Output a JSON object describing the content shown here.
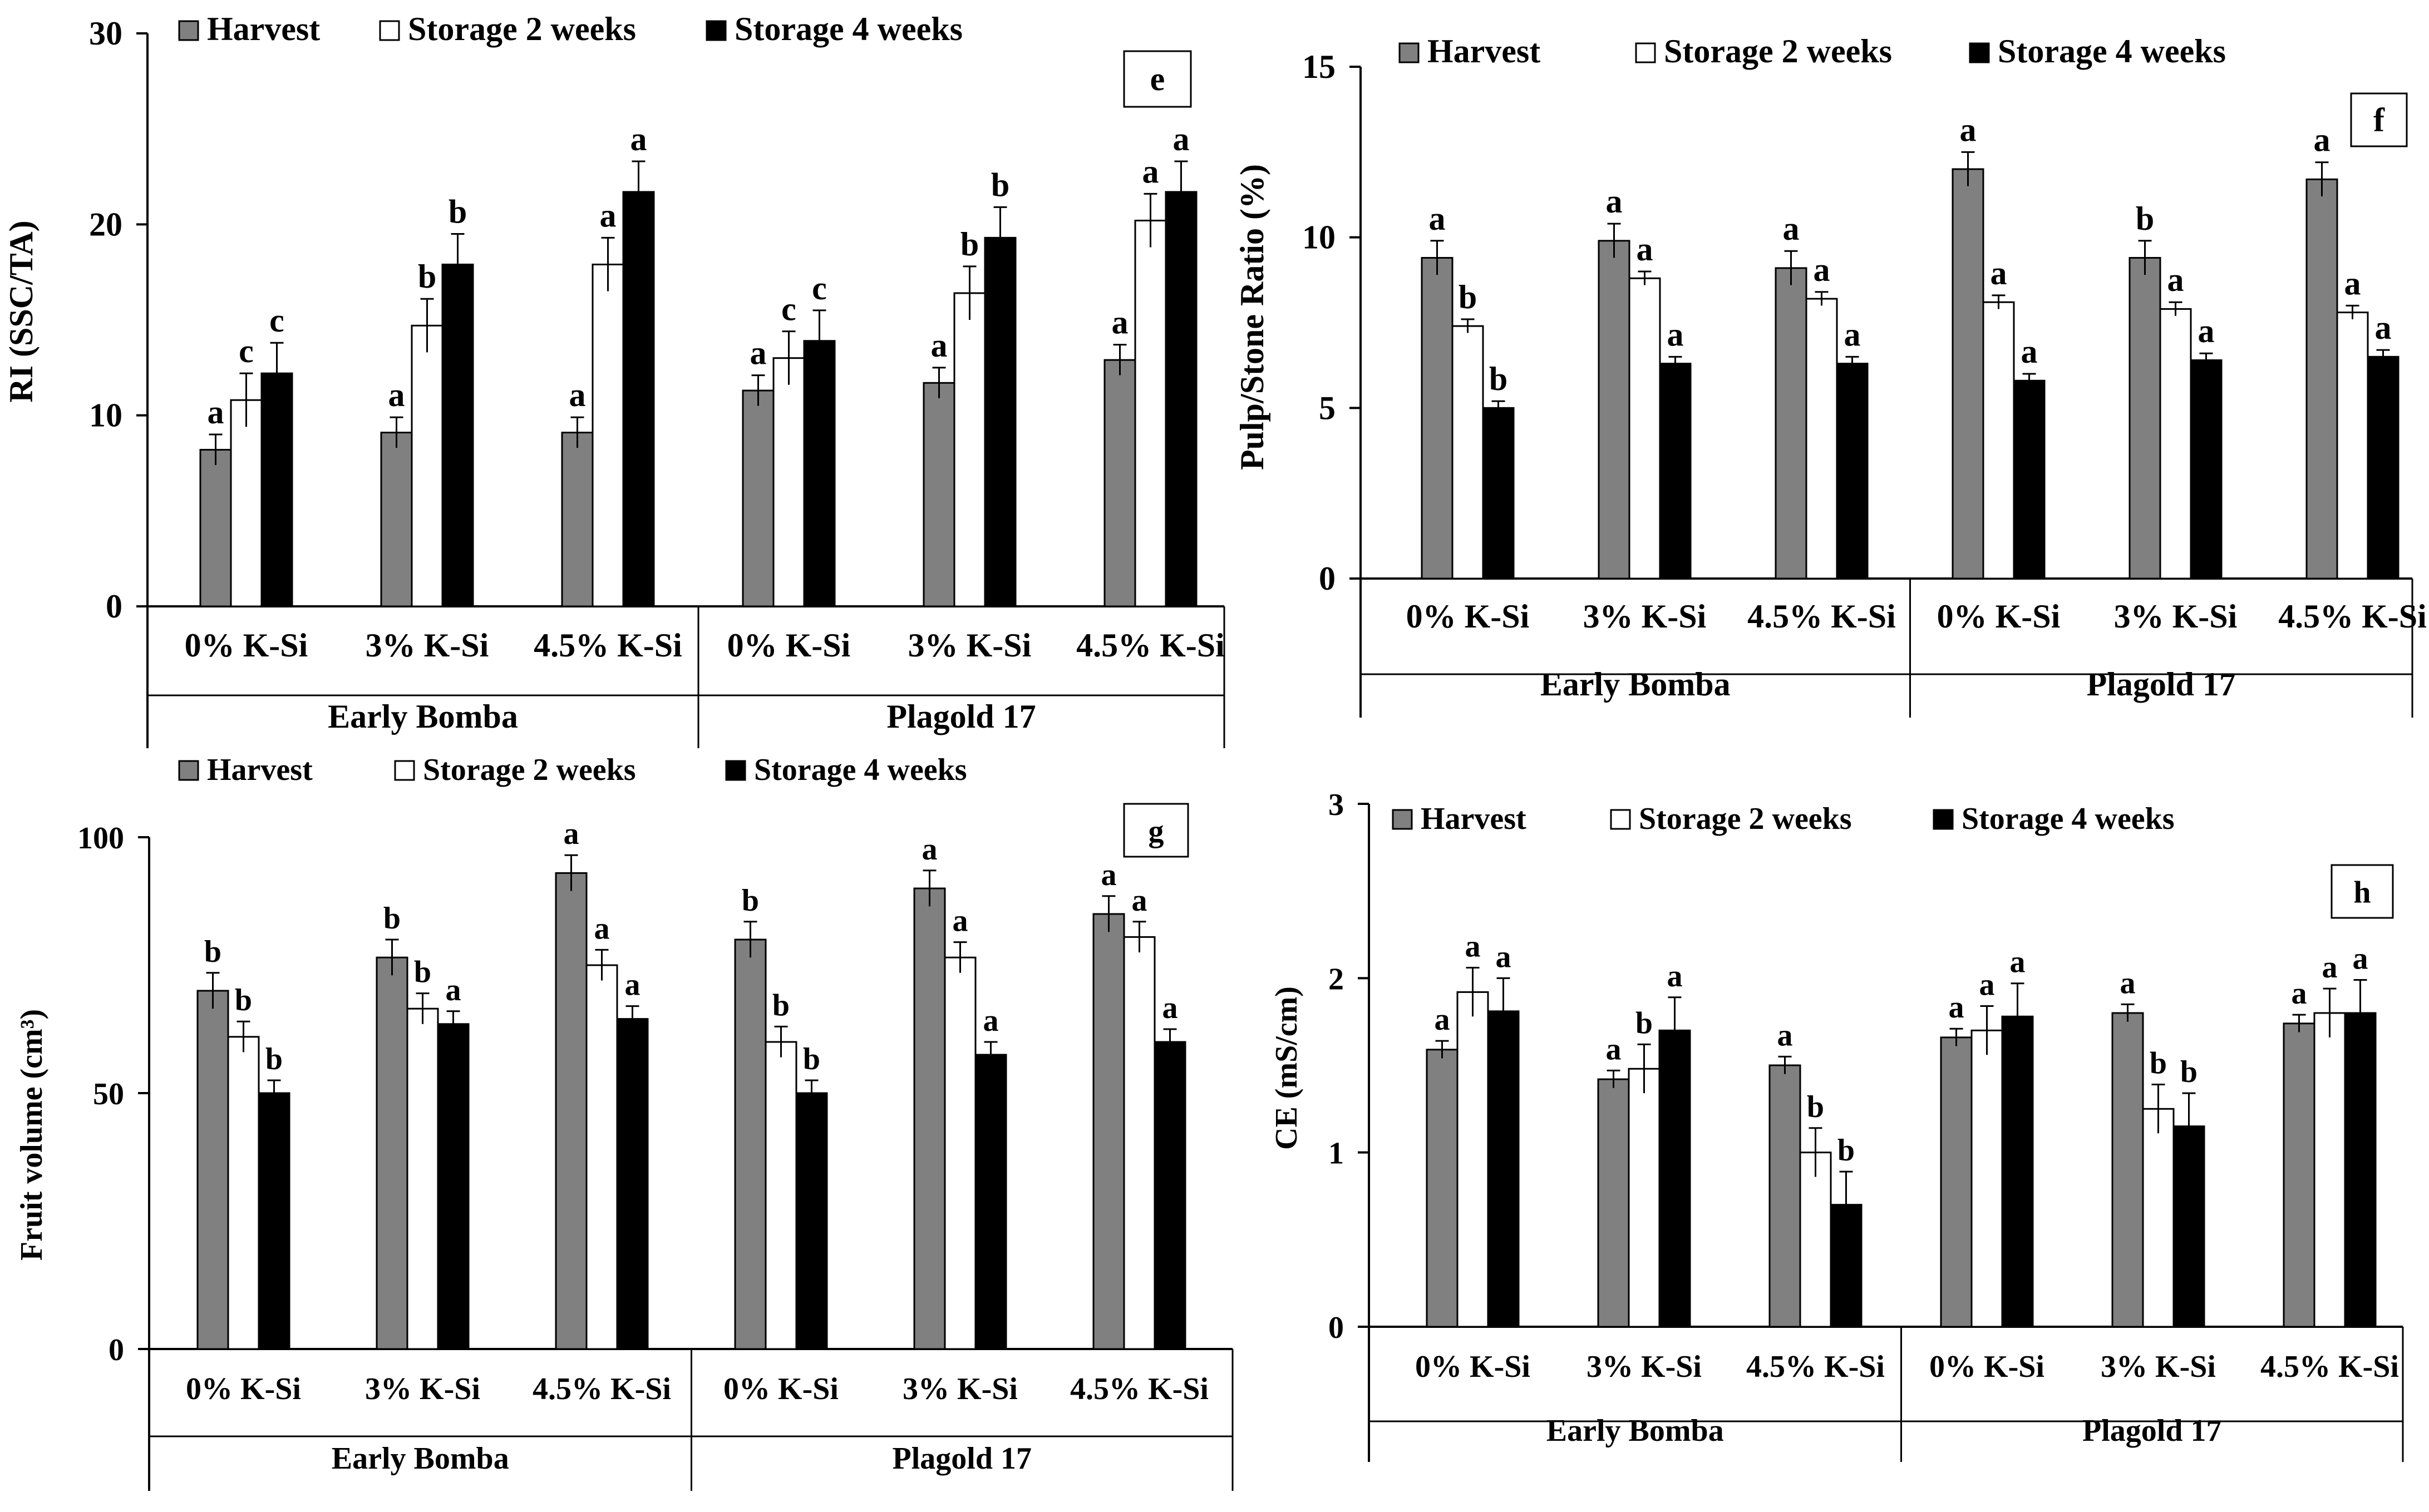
{
  "colors": {
    "harvest": "#808080",
    "storage_2_weeks": "#ffffff",
    "storage_4_weeks": "#000000",
    "axis": "#000000"
  },
  "chart_data": [
    {
      "type": "bar",
      "panel_label": "e",
      "ylabel": "RI (SSC/TA)",
      "ylim": [
        0,
        30
      ],
      "yticks": [
        "0",
        "10",
        "20",
        "30"
      ],
      "legend": [
        "Harvest",
        "Storage 2 weeks",
        "Storage 4 weeks"
      ],
      "categories": [
        "0% K-Si",
        "3% K-Si",
        "4.5% K-Si",
        "0% K-Si",
        "3% K-Si",
        "4.5% K-Si"
      ],
      "groups": [
        "Early Bomba",
        "Plagold 17"
      ],
      "series": [
        {
          "name": "Harvest",
          "values": [
            8.2,
            9.1,
            9.1,
            11.3,
            11.7,
            12.9
          ],
          "errors": [
            0.8,
            0.8,
            0.8,
            0.8,
            0.8,
            0.8
          ],
          "letters": [
            "a",
            "a",
            "a",
            "a",
            "a",
            "a"
          ]
        },
        {
          "name": "Storage 2 weeks",
          "values": [
            10.8,
            14.7,
            17.9,
            13.0,
            16.4,
            20.2
          ],
          "errors": [
            1.4,
            1.4,
            1.4,
            1.4,
            1.4,
            1.4
          ],
          "letters": [
            "c",
            "b",
            "a",
            "c",
            "b",
            "a"
          ]
        },
        {
          "name": "Storage 4 weeks",
          "values": [
            12.2,
            17.9,
            21.7,
            13.9,
            19.3,
            21.7
          ],
          "errors": [
            1.6,
            1.6,
            1.6,
            1.6,
            1.6,
            1.6
          ],
          "letters": [
            "c",
            "b",
            "a",
            "c",
            "b",
            "a"
          ]
        }
      ]
    },
    {
      "type": "bar",
      "panel_label": "f",
      "ylabel": "Pulp/Stone Ratio (%)",
      "ylim": [
        0,
        15
      ],
      "yticks": [
        "0",
        "5",
        "10",
        "15"
      ],
      "legend": [
        "Harvest",
        "Storage 2 weeks",
        "Storage 4 weeks"
      ],
      "categories": [
        "0% K-Si",
        "3% K-Si",
        "4.5% K-Si",
        "0% K-Si",
        "3% K-Si",
        "4.5% K-Si"
      ],
      "groups": [
        "Early Bomba",
        "Plagold 17"
      ],
      "series": [
        {
          "name": "Harvest",
          "values": [
            9.4,
            9.9,
            9.1,
            12.0,
            9.4,
            11.7
          ],
          "errors": [
            0.5,
            0.5,
            0.5,
            0.5,
            0.5,
            0.5
          ],
          "letters": [
            "a",
            "a",
            "a",
            "a",
            "b",
            "a"
          ]
        },
        {
          "name": "Storage 2 weeks",
          "values": [
            7.4,
            8.8,
            8.2,
            8.1,
            7.9,
            7.8
          ],
          "errors": [
            0.2,
            0.2,
            0.2,
            0.2,
            0.2,
            0.2
          ],
          "letters": [
            "b",
            "a",
            "a",
            "a",
            "a",
            "a"
          ]
        },
        {
          "name": "Storage 4 weeks",
          "values": [
            5.0,
            6.3,
            6.3,
            5.8,
            6.4,
            6.5
          ],
          "errors": [
            0.2,
            0.2,
            0.2,
            0.2,
            0.2,
            0.2
          ],
          "letters": [
            "b",
            "a",
            "a",
            "a",
            "a",
            "a"
          ]
        }
      ]
    },
    {
      "type": "bar",
      "panel_label": "g",
      "ylabel": "Fruit volume (cm³)",
      "ylim": [
        0,
        100
      ],
      "yticks": [
        "0",
        "50",
        "100"
      ],
      "legend": [
        "Harvest",
        "Storage 2 weeks",
        "Storage 4 weeks"
      ],
      "categories": [
        "0% K-Si",
        "3% K-Si",
        "4.5% K-Si",
        "0% K-Si",
        "3% K-Si",
        "4.5% K-Si"
      ],
      "groups": [
        "Early Bomba",
        "Plagold 17"
      ],
      "series": [
        {
          "name": "Harvest",
          "values": [
            70,
            76.5,
            93,
            80,
            90,
            85
          ],
          "errors": [
            3.5,
            3.5,
            3.5,
            3.5,
            3.5,
            3.5
          ],
          "letters": [
            "b",
            "b",
            "a",
            "b",
            "a",
            "a"
          ]
        },
        {
          "name": "Storage 2 weeks",
          "values": [
            61,
            66.5,
            75,
            60,
            76.5,
            80.5
          ],
          "errors": [
            3.0,
            3.0,
            3.0,
            3.0,
            3.0,
            3.0
          ],
          "letters": [
            "b",
            "b",
            "a",
            "b",
            "a",
            "a"
          ]
        },
        {
          "name": "Storage 4 weeks",
          "values": [
            50,
            63.5,
            64.5,
            50,
            57.5,
            60
          ],
          "errors": [
            2.5,
            2.5,
            2.5,
            2.5,
            2.5,
            2.5
          ],
          "letters": [
            "b",
            "a",
            "a",
            "b",
            "a",
            "a"
          ]
        }
      ]
    },
    {
      "type": "bar",
      "panel_label": "h",
      "ylabel": "CE (mS/cm)",
      "ylim": [
        0,
        3
      ],
      "yticks": [
        "0",
        "1",
        "2",
        "3"
      ],
      "legend": [
        "Harvest",
        "Storage 2 weeks",
        "Storage 4 weeks"
      ],
      "categories": [
        "0% K-Si",
        "3% K-Si",
        "4.5% K-Si",
        "0% K-Si",
        "3% K-Si",
        "4.5% K-Si"
      ],
      "groups": [
        "Early Bomba",
        "Plagold 17"
      ],
      "series": [
        {
          "name": "Harvest",
          "values": [
            1.59,
            1.42,
            1.5,
            1.66,
            1.8,
            1.74
          ],
          "errors": [
            0.05,
            0.05,
            0.05,
            0.05,
            0.05,
            0.05
          ],
          "letters": [
            "a",
            "a",
            "a",
            "a",
            "a",
            "a"
          ]
        },
        {
          "name": "Storage 2 weeks",
          "values": [
            1.92,
            1.48,
            1.0,
            1.7,
            1.25,
            1.8
          ],
          "errors": [
            0.14,
            0.14,
            0.14,
            0.14,
            0.14,
            0.14
          ],
          "letters": [
            "a",
            "b",
            "b",
            "a",
            "b",
            "a"
          ]
        },
        {
          "name": "Storage 4 weeks",
          "values": [
            1.81,
            1.7,
            0.7,
            1.78,
            1.15,
            1.8
          ],
          "errors": [
            0.19,
            0.19,
            0.19,
            0.19,
            0.19,
            0.19
          ],
          "letters": [
            "a",
            "a",
            "b",
            "a",
            "b",
            "a"
          ]
        }
      ]
    }
  ]
}
